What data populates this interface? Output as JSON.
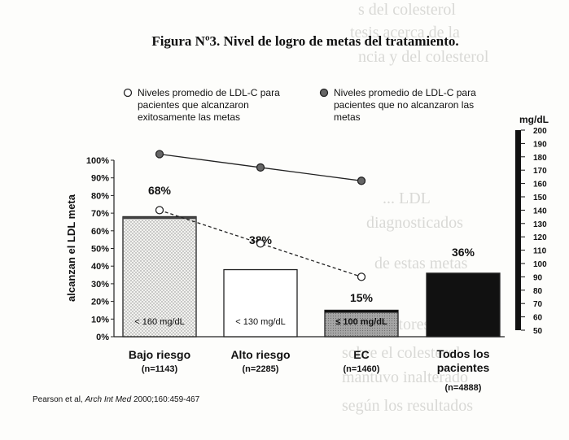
{
  "chart_data": {
    "type": "bar",
    "title": "Figura Nº3. Nivel de logro de metas del tratamiento.",
    "ylabel": "alcanzan el LDL meta",
    "ylim": [
      0,
      100
    ],
    "y_ticks": [
      "0%",
      "10%",
      "20%",
      "30%",
      "40%",
      "50%",
      "60%",
      "70%",
      "80%",
      "90%",
      "100%"
    ],
    "categories": [
      {
        "label": "Bajo riesgo",
        "n": "(n=1143)",
        "inside": "< 160 mg/dL",
        "value": 68,
        "value_label": "68%",
        "fill": "dotted"
      },
      {
        "label": "Alto riesgo",
        "n": "(n=2285)",
        "inside": "< 130 mg/dL",
        "value": 38,
        "value_label": "38%",
        "fill": "white"
      },
      {
        "label": "EC",
        "n": "(n=1460)",
        "inside": "≤ 100 mg/dL",
        "value": 15,
        "value_label": "15%",
        "fill": "gray"
      },
      {
        "label_lines": [
          "Todos los",
          "pacientes"
        ],
        "n": "(n=4888)",
        "inside": "",
        "value": 36,
        "value_label": "36%",
        "fill": "black"
      }
    ],
    "legend": {
      "placement": "top",
      "achieved_lines": [
        "Niveles promedio de LDL-C para",
        "pacientes que alcanzaron",
        "exitosamente las metas"
      ],
      "not_achieved_lines": [
        "Niveles promedio de LDL-C para",
        "pacientes que no alcanzaron las",
        "metas"
      ]
    },
    "secondary_axis": {
      "label": "mg/dL",
      "ylim": [
        50,
        200
      ],
      "ticks": [
        "200",
        "190",
        "180",
        "170",
        "160",
        "150",
        "140",
        "130",
        "120",
        "110",
        "100",
        "90",
        "80",
        "70",
        "60",
        "50"
      ]
    },
    "series": [
      {
        "name": "Niveles promedio de LDL-C para pacientes que alcanzaron exitosamente las metas",
        "style": "dashed-open-circle",
        "values_mgdl": [
          140,
          115,
          90
        ]
      },
      {
        "name": "Niveles promedio de LDL-C para pacientes que no alcanzaron las metas",
        "style": "solid-filled-circle",
        "values_mgdl": [
          182,
          172,
          162
        ]
      }
    ],
    "source": {
      "prefix": "Pearson et al, ",
      "journal": "Arch Int Med",
      "suffix": " 2000;160:459-467"
    }
  },
  "colors": {
    "bar_black": "#111111",
    "bar_gray": "#9a9a9a",
    "achieved_line": "#222222",
    "not_achieved_line": "#222222"
  }
}
